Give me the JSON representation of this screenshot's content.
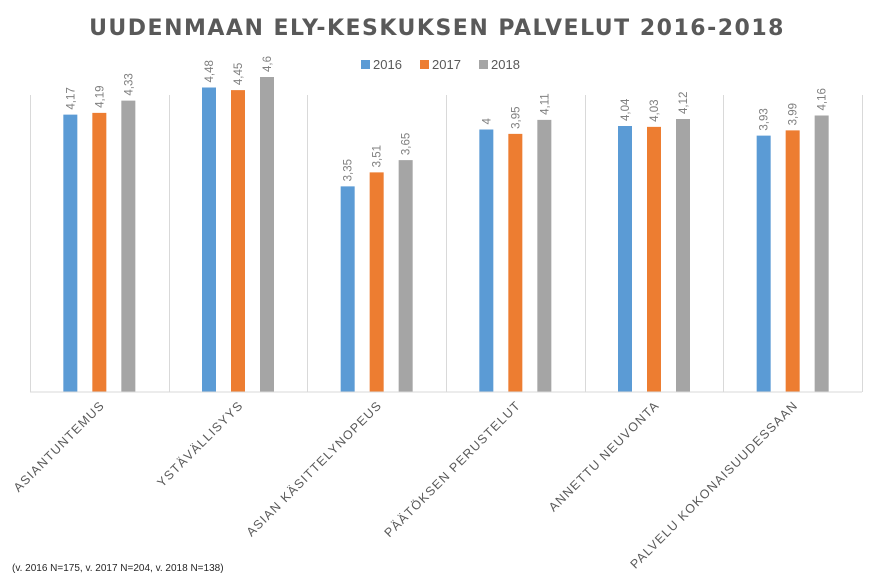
{
  "chart_data": {
    "type": "bar",
    "title": "UUDENMAAN ELY-KESKUKSEN PALVELUT 2016-2018",
    "categories": [
      "ASIANTUNTEMUS",
      "YSTÄVÄLLISYYS",
      "ASIAN KÄSITTELYNOPEUS",
      "PÄÄTÖKSEN PERUSTELUT",
      "ANNETTU NEUVONTA",
      "PALVELU KOKONAISUUDESSAAN"
    ],
    "series": [
      {
        "name": "2016",
        "color": "#5b9bd5",
        "values": [
          4.17,
          4.48,
          3.35,
          4,
          4.04,
          3.93
        ],
        "labels": [
          "4,17",
          "4,48",
          "3,35",
          "4",
          "4,04",
          "3,93"
        ]
      },
      {
        "name": "2017",
        "color": "#ed7d31",
        "values": [
          4.19,
          4.45,
          3.51,
          3.95,
          4.03,
          3.99
        ],
        "labels": [
          "4,19",
          "4,45",
          "3,51",
          "3,95",
          "4,03",
          "3,99"
        ]
      },
      {
        "name": "2018",
        "color": "#a5a5a5",
        "values": [
          4.33,
          4.6,
          3.65,
          4.11,
          4.12,
          4.16
        ],
        "labels": [
          "4,33",
          "4,6",
          "3,65",
          "4,11",
          "4,12",
          "4,16"
        ]
      }
    ],
    "ylim": [
      1,
      5
    ],
    "legend": "top-center",
    "grid": "vertical category separators",
    "xlabel": "",
    "ylabel": ""
  },
  "footnote": "(v. 2016 N=175, v. 2017 N=204, v. 2018 N=138)"
}
